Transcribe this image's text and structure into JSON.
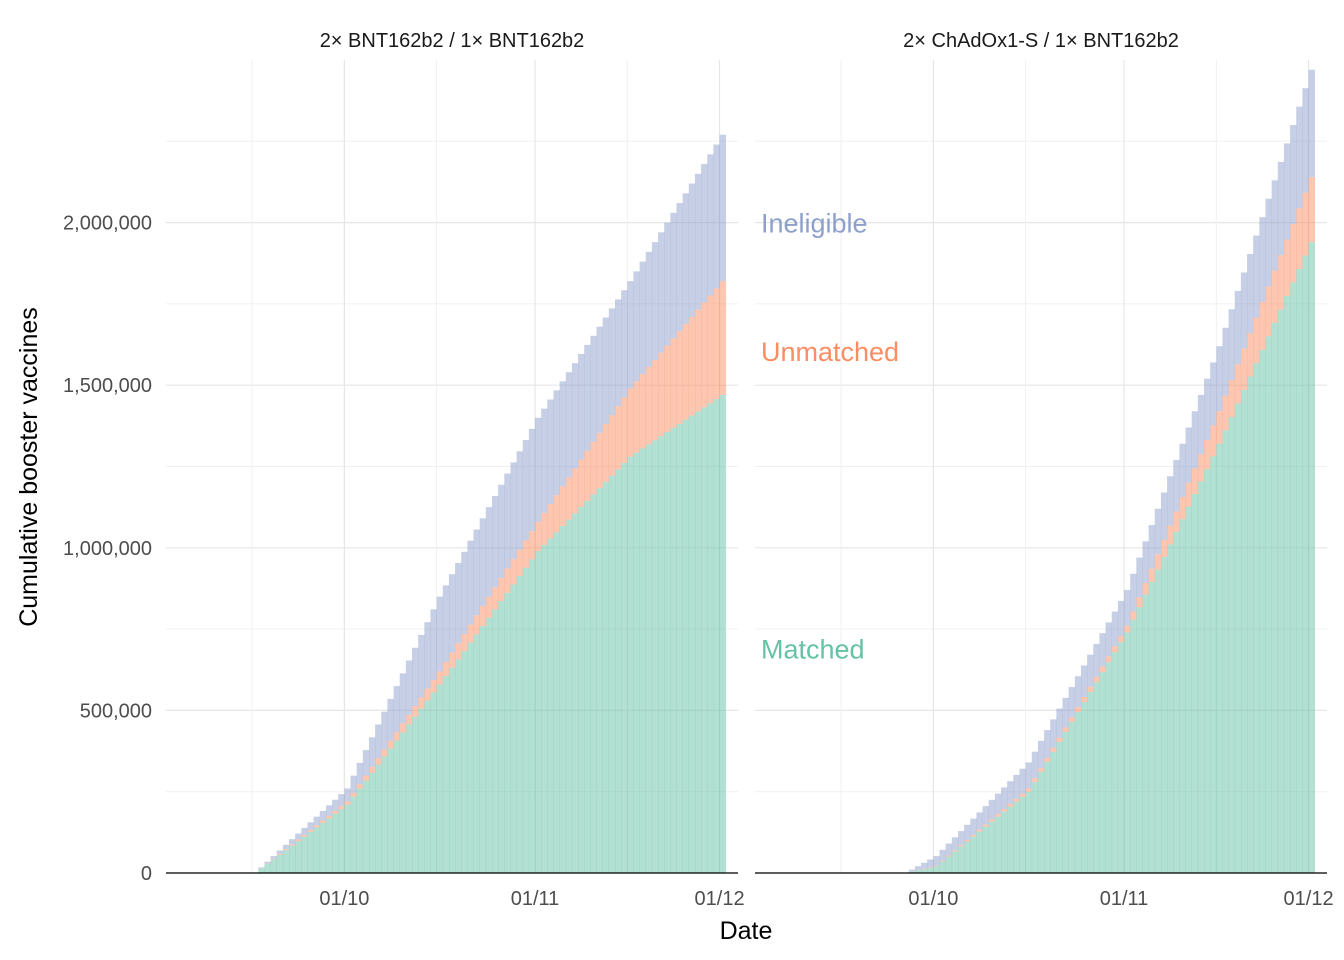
{
  "chart_data": {
    "type": "area",
    "xlabel": "Date",
    "ylabel": "Cumulative booster vaccines",
    "ylim": [
      0,
      2500000
    ],
    "yticks": [
      0,
      500000,
      1000000,
      1500000,
      2000000
    ],
    "ytick_labels": [
      "0",
      "500,000",
      "1,000,000",
      "1,500,000",
      "2,000,000"
    ],
    "xticks": [
      "01/10",
      "01/11",
      "01/12"
    ],
    "grid": true,
    "legend": "none (direct labels)",
    "series_names": [
      "Matched",
      "Unmatched",
      "Ineligible"
    ],
    "colors": {
      "Matched": "#66c2a5",
      "Unmatched": "#fc8d62",
      "Ineligible": "#8da0cb"
    },
    "annotations": [
      {
        "text": "Ineligible",
        "color": "#8da0cb"
      },
      {
        "text": "Unmatched",
        "color": "#fc8d62"
      },
      {
        "text": "Matched",
        "color": "#66c2a5"
      }
    ],
    "panels": [
      {
        "title": "2× BNT162b2  / 1× BNT162b2",
        "x": [
          "2021-09-16",
          "2021-10-01",
          "2021-10-16",
          "2021-11-01",
          "2021-11-16",
          "2021-12-01"
        ],
        "series": [
          {
            "name": "Matched",
            "values": [
              0,
              210000,
              580000,
              990000,
              1280000,
              1470000
            ]
          },
          {
            "name": "Unmatched",
            "values": [
              0,
              10000,
              40000,
              90000,
              210000,
              350000
            ]
          },
          {
            "name": "Ineligible",
            "values": [
              0,
              40000,
              230000,
              320000,
              330000,
              450000
            ]
          }
        ]
      },
      {
        "title": "2× ChAdOx1-S / 1× BNT162b2",
        "x": [
          "2021-09-26",
          "2021-10-01",
          "2021-10-16",
          "2021-11-01",
          "2021-11-16",
          "2021-12-01"
        ],
        "series": [
          {
            "name": "Matched",
            "values": [
              0,
              20000,
              250000,
              740000,
              1320000,
              1940000
            ]
          },
          {
            "name": "Unmatched",
            "values": [
              0,
              2000,
              10000,
              20000,
              100000,
              200000
            ]
          },
          {
            "name": "Ineligible",
            "values": [
              0,
              30000,
              80000,
              110000,
              200000,
              330000
            ]
          }
        ]
      }
    ]
  }
}
